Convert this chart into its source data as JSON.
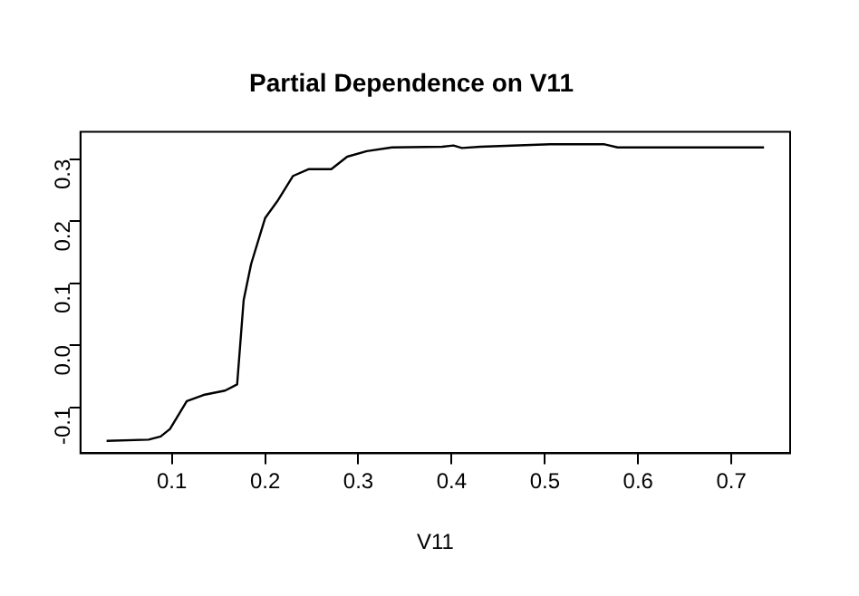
{
  "chart_data": {
    "type": "line",
    "title": "Partial Dependence on V11",
    "xlabel": "V11",
    "series": [
      {
        "color": "#000000",
        "x": [
          0.03,
          0.075,
          0.088,
          0.098,
          0.116,
          0.134,
          0.157,
          0.17,
          0.177,
          0.185,
          0.2,
          0.213,
          0.23,
          0.247,
          0.271,
          0.288,
          0.309,
          0.336,
          0.39,
          0.402,
          0.411,
          0.431,
          0.506,
          0.564,
          0.578,
          0.735
        ],
        "values": [
          -0.154,
          -0.152,
          -0.147,
          -0.135,
          -0.09,
          -0.08,
          -0.073,
          -0.063,
          0.073,
          0.131,
          0.205,
          0.232,
          0.273,
          0.284,
          0.284,
          0.304,
          0.313,
          0.319,
          0.32,
          0.322,
          0.318,
          0.32,
          0.324,
          0.324,
          0.319,
          0.319
        ]
      }
    ],
    "xlim": [
      0.002,
      0.763
    ],
    "ylim": [
      -0.174,
      0.344
    ],
    "xticks": [
      0.1,
      0.2,
      0.3,
      0.4,
      0.5,
      0.6,
      0.7
    ],
    "yticks": [
      -0.1,
      {
        "value": 0,
        "label": "0.0"
      },
      0.1,
      0.2,
      0.3
    ],
    "grid": false,
    "legend": false,
    "marker": "none",
    "line_style": "solid"
  }
}
